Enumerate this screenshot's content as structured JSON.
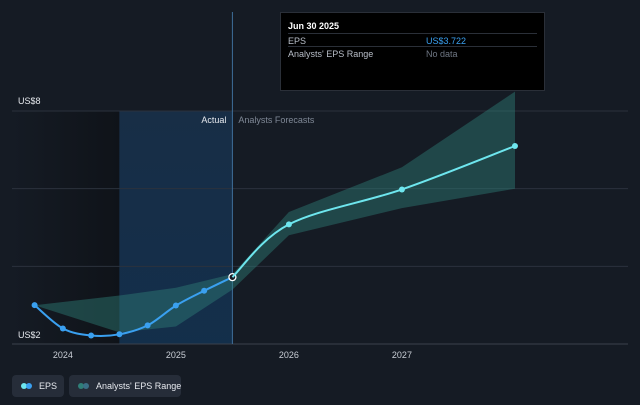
{
  "tooltip": {
    "date": "Jun 30 2025",
    "eps_label": "EPS",
    "eps_value": "US$3.722",
    "range_label": "Analysts' EPS Range",
    "range_value": "No data"
  },
  "section_labels": {
    "actual": "Actual",
    "forecast": "Analysts Forecasts"
  },
  "legend": {
    "eps_label": "EPS",
    "range_label": "Analysts' EPS Range",
    "eps_color": "#3aa0f0",
    "range_color": "#2f7f78"
  },
  "chart_data": {
    "type": "line",
    "y_axis_labels": [
      "US$8",
      "US$2"
    ],
    "ylim": [
      2,
      8
    ],
    "x_tick_labels": [
      "2024",
      "2025",
      "2026",
      "2027"
    ],
    "x_ticks": [
      2024.0,
      2025.0,
      2026.0,
      2027.0
    ],
    "xlim": [
      2023.55,
      2029.0
    ],
    "actual_forecast_split": 2025.5,
    "highlight_start": 2024.5,
    "grid": true,
    "legend_position": "bottom-left",
    "series": [
      {
        "name": "EPS",
        "color": "#3aa0f0",
        "x": [
          2023.75,
          2024.0,
          2024.25,
          2024.5,
          2024.75,
          2025.0,
          2025.25,
          2025.5
        ],
        "y": [
          3.0,
          2.4,
          2.22,
          2.25,
          2.48,
          2.99,
          3.37,
          3.722
        ]
      },
      {
        "name": "EPS",
        "color": "#6ee6ee",
        "x": [
          2025.5,
          2026.0,
          2027.0,
          2028.0
        ],
        "y": [
          3.722,
          5.08,
          5.98,
          7.1
        ]
      },
      {
        "name": "Analysts' EPS Range",
        "color": "#2f7f78",
        "x": [
          2023.75,
          2024.5,
          2025.0,
          2025.5,
          2026.0,
          2027.0,
          2028.0
        ],
        "low": [
          3.0,
          2.3,
          2.45,
          3.4,
          4.8,
          5.5,
          6.0
        ],
        "high": [
          3.0,
          3.25,
          3.45,
          3.8,
          5.4,
          6.55,
          8.5
        ]
      }
    ]
  }
}
